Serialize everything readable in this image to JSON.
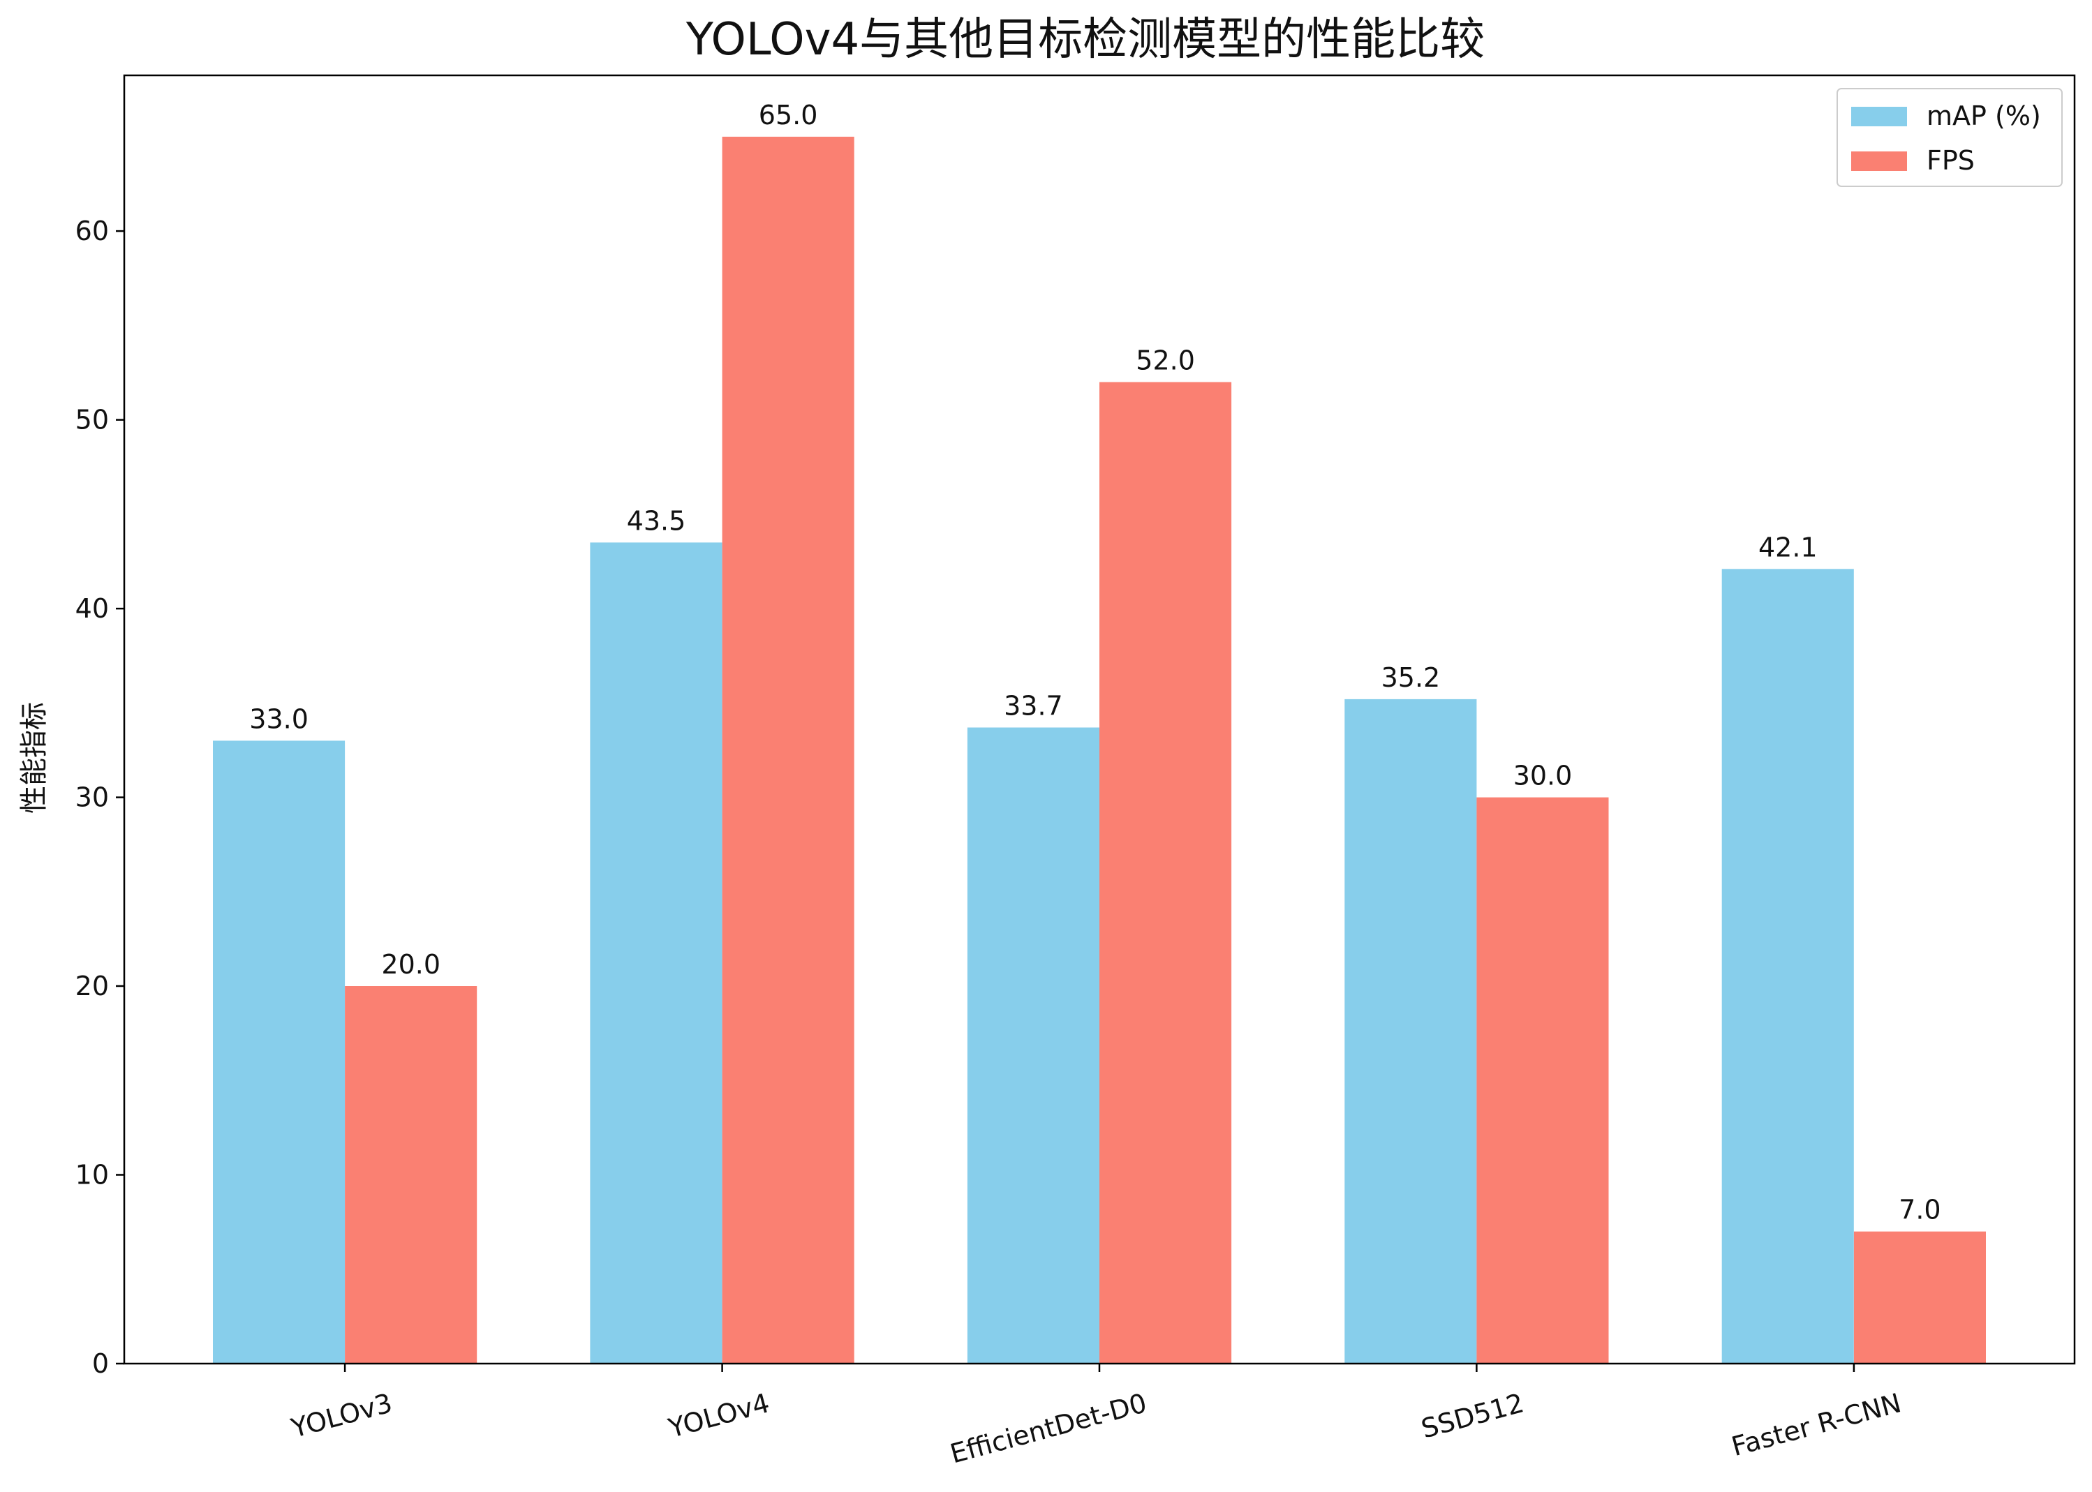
{
  "chart_data": {
    "type": "bar",
    "title": "YOLOv4与其他目标检测模型的性能比较",
    "xlabel": "",
    "ylabel": "性能指标",
    "categories": [
      "YOLOv3",
      "YOLOv4",
      "EfficientDet-D0",
      "SSD512",
      "Faster R-CNN"
    ],
    "series": [
      {
        "name": "mAP (%)",
        "values": [
          33.0,
          43.5,
          33.7,
          35.2,
          42.1
        ],
        "color": "#87CEEB"
      },
      {
        "name": "FPS",
        "values": [
          20.0,
          65.0,
          52.0,
          30.0,
          7.0
        ],
        "color": "#FA8072"
      }
    ],
    "ylim": [
      0,
      68.25
    ],
    "yticks": [
      0,
      10,
      20,
      30,
      40,
      50,
      60
    ],
    "grid": false,
    "legend_position": "upper right",
    "xtick_rotation": -15,
    "value_labels": true
  }
}
